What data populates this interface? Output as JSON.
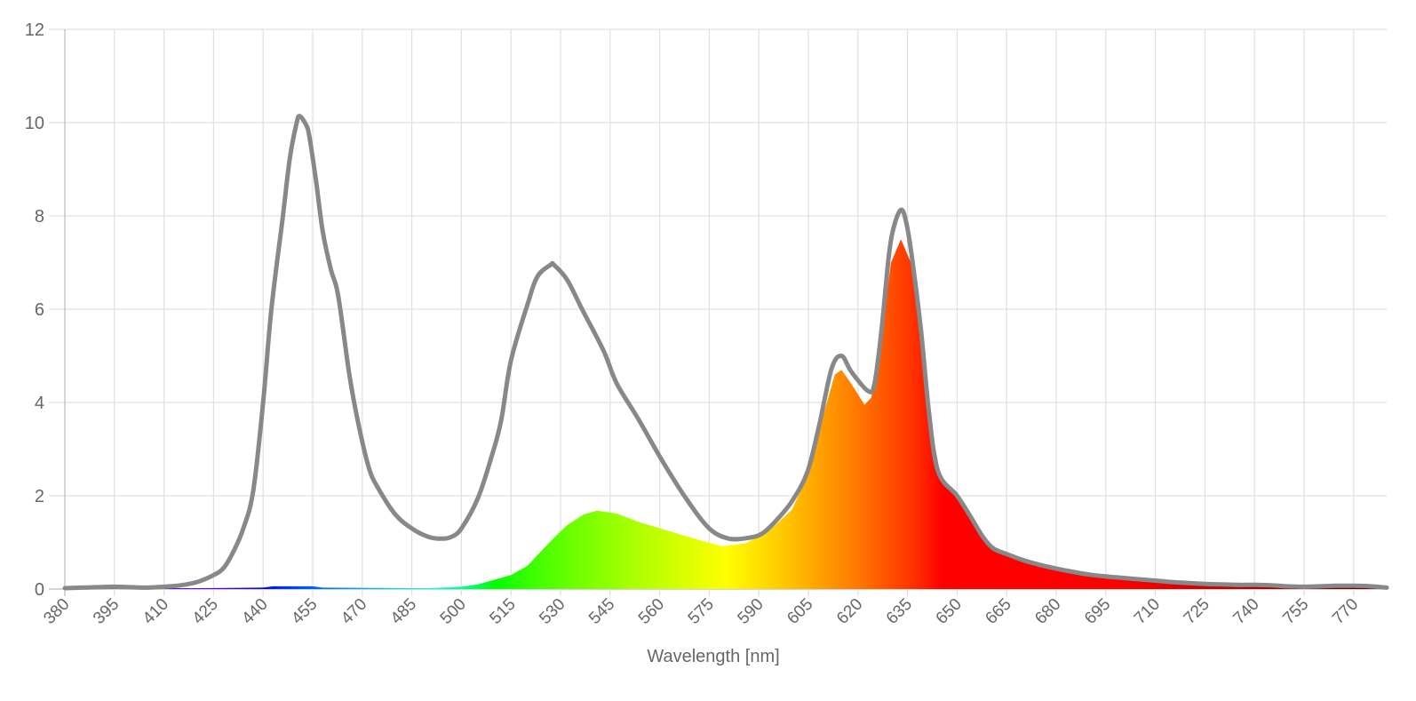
{
  "chart_data": {
    "type": "area",
    "title": "",
    "xlabel": "Wavelength [nm]",
    "ylabel": "",
    "xlim": [
      380,
      780
    ],
    "ylim": [
      0,
      12
    ],
    "grid": true,
    "legend": "none",
    "x_ticks": [
      380,
      395,
      410,
      425,
      440,
      455,
      470,
      485,
      500,
      515,
      530,
      545,
      560,
      575,
      590,
      605,
      620,
      635,
      650,
      665,
      680,
      695,
      710,
      725,
      740,
      755,
      770
    ],
    "y_ticks": [
      0,
      2,
      4,
      6,
      8,
      10,
      12
    ],
    "colors": {
      "outline": "#888888",
      "grid": "#e0e0e0",
      "axis": "#bbbbbb",
      "fill": "spectral (wavelength colour)"
    },
    "series": [
      {
        "style": "line",
        "points": [
          [
            380,
            0.02
          ],
          [
            385,
            0.03
          ],
          [
            390,
            0.04
          ],
          [
            395,
            0.05
          ],
          [
            400,
            0.04
          ],
          [
            405,
            0.03
          ],
          [
            410,
            0.05
          ],
          [
            415,
            0.08
          ],
          [
            420,
            0.15
          ],
          [
            425,
            0.3
          ],
          [
            428,
            0.45
          ],
          [
            431,
            0.8
          ],
          [
            434,
            1.3
          ],
          [
            437,
            2.1
          ],
          [
            440,
            4.0
          ],
          [
            442.5,
            6.0
          ],
          [
            446,
            8.0
          ],
          [
            448,
            9.2
          ],
          [
            450,
            9.95
          ],
          [
            451,
            10.14
          ],
          [
            453,
            9.95
          ],
          [
            454,
            9.7
          ],
          [
            456,
            8.76
          ],
          [
            458,
            7.68
          ],
          [
            460.5,
            6.85
          ],
          [
            462.7,
            6.3
          ],
          [
            466,
            4.64
          ],
          [
            468.6,
            3.62
          ],
          [
            472,
            2.6
          ],
          [
            475,
            2.14
          ],
          [
            480,
            1.6
          ],
          [
            485,
            1.3
          ],
          [
            490,
            1.12
          ],
          [
            494,
            1.08
          ],
          [
            497,
            1.12
          ],
          [
            500,
            1.3
          ],
          [
            505,
            1.95
          ],
          [
            509,
            2.81
          ],
          [
            512,
            3.6
          ],
          [
            515,
            4.9
          ],
          [
            520,
            6.1
          ],
          [
            523,
            6.7
          ],
          [
            527,
            6.95
          ],
          [
            528,
            6.95
          ],
          [
            532,
            6.63
          ],
          [
            536.5,
            6.0
          ],
          [
            543,
            5.11
          ],
          [
            547,
            4.41
          ],
          [
            553.5,
            3.65
          ],
          [
            560.7,
            2.76
          ],
          [
            568,
            1.94
          ],
          [
            575,
            1.3
          ],
          [
            581,
            1.08
          ],
          [
            587,
            1.1
          ],
          [
            591,
            1.19
          ],
          [
            595,
            1.45
          ],
          [
            600,
            1.88
          ],
          [
            604.7,
            2.51
          ],
          [
            608.3,
            3.52
          ],
          [
            612,
            4.72
          ],
          [
            615,
            5.0
          ],
          [
            618,
            4.66
          ],
          [
            623,
            4.25
          ],
          [
            625,
            4.4
          ],
          [
            627.2,
            5.6
          ],
          [
            629.4,
            7.18
          ],
          [
            631,
            7.8
          ],
          [
            633,
            8.13
          ],
          [
            634.5,
            7.9
          ],
          [
            636.2,
            7.18
          ],
          [
            639,
            5.6
          ],
          [
            641.6,
            3.71
          ],
          [
            644.3,
            2.51
          ],
          [
            650,
            2.0
          ],
          [
            654,
            1.56
          ],
          [
            658,
            1.1
          ],
          [
            661,
            0.87
          ],
          [
            665,
            0.75
          ],
          [
            670,
            0.62
          ],
          [
            675,
            0.52
          ],
          [
            680,
            0.44
          ],
          [
            685,
            0.37
          ],
          [
            690,
            0.31
          ],
          [
            695,
            0.27
          ],
          [
            700,
            0.24
          ],
          [
            705,
            0.21
          ],
          [
            710,
            0.18
          ],
          [
            715,
            0.15
          ],
          [
            720,
            0.13
          ],
          [
            725,
            0.11
          ],
          [
            730,
            0.1
          ],
          [
            735,
            0.09
          ],
          [
            740,
            0.09
          ],
          [
            745,
            0.08
          ],
          [
            750,
            0.06
          ],
          [
            755,
            0.05
          ],
          [
            760,
            0.06
          ],
          [
            765,
            0.07
          ],
          [
            770,
            0.07
          ],
          [
            775,
            0.06
          ],
          [
            780,
            0.03
          ]
        ]
      },
      {
        "style": "spectral-fill",
        "points": [
          [
            380,
            0.02
          ],
          [
            400,
            0.02
          ],
          [
            420,
            0.02
          ],
          [
            440,
            0.03
          ],
          [
            443,
            0.06
          ],
          [
            455,
            0.06
          ],
          [
            458,
            0.03
          ],
          [
            490,
            0.02
          ],
          [
            500,
            0.05
          ],
          [
            505,
            0.1
          ],
          [
            510,
            0.2
          ],
          [
            515,
            0.3
          ],
          [
            520,
            0.5
          ],
          [
            523,
            0.73
          ],
          [
            528,
            1.1
          ],
          [
            532,
            1.37
          ],
          [
            537,
            1.6
          ],
          [
            541,
            1.68
          ],
          [
            547,
            1.62
          ],
          [
            554,
            1.43
          ],
          [
            563,
            1.24
          ],
          [
            572,
            1.05
          ],
          [
            579,
            0.92
          ],
          [
            586,
            0.98
          ],
          [
            593,
            1.24
          ],
          [
            600,
            1.7
          ],
          [
            605,
            2.45
          ],
          [
            610,
            3.85
          ],
          [
            613,
            4.6
          ],
          [
            615,
            4.7
          ],
          [
            618,
            4.4
          ],
          [
            622,
            3.95
          ],
          [
            624,
            4.1
          ],
          [
            627,
            5.4
          ],
          [
            630,
            7.0
          ],
          [
            633,
            7.5
          ],
          [
            636,
            7.0
          ],
          [
            639,
            5.4
          ],
          [
            642,
            3.6
          ],
          [
            645,
            2.4
          ],
          [
            650,
            1.95
          ],
          [
            654,
            1.5
          ],
          [
            658,
            1.05
          ],
          [
            661,
            0.85
          ],
          [
            665,
            0.73
          ],
          [
            670,
            0.6
          ],
          [
            675,
            0.5
          ],
          [
            680,
            0.42
          ],
          [
            685,
            0.35
          ],
          [
            690,
            0.3
          ],
          [
            695,
            0.26
          ],
          [
            700,
            0.23
          ],
          [
            705,
            0.2
          ],
          [
            710,
            0.17
          ],
          [
            715,
            0.14
          ],
          [
            720,
            0.12
          ],
          [
            725,
            0.1
          ],
          [
            730,
            0.09
          ],
          [
            735,
            0.08
          ],
          [
            740,
            0.08
          ],
          [
            745,
            0.07
          ],
          [
            750,
            0.05
          ],
          [
            755,
            0.04
          ],
          [
            760,
            0.05
          ],
          [
            765,
            0.06
          ],
          [
            770,
            0.06
          ],
          [
            775,
            0.05
          ],
          [
            780,
            0.03
          ]
        ]
      }
    ]
  }
}
